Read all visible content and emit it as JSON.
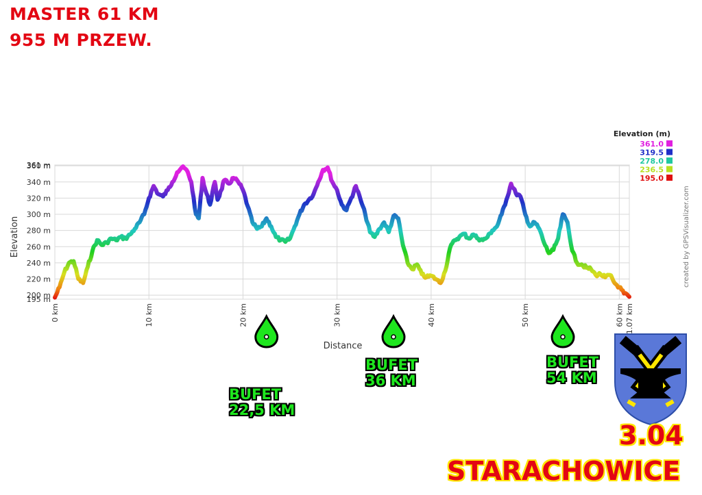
{
  "header": {
    "line1": "MASTER 61 KM",
    "line2": "955 M PRZEW."
  },
  "chart_data": {
    "type": "area",
    "xlabel": "Distance",
    "ylabel": "Elevation",
    "xlim": [
      0,
      61.07
    ],
    "ylim": [
      195,
      361
    ],
    "x_ticks": [
      "0 km",
      "10 km",
      "20 km",
      "30 km",
      "40 km",
      "50 km",
      "60 km",
      "61.07 km"
    ],
    "x_tick_values": [
      0,
      10,
      20,
      30,
      40,
      50,
      60,
      61.07
    ],
    "y_ticks": [
      "195 m",
      "200 m",
      "220 m",
      "240 m",
      "260 m",
      "280 m",
      "300 m",
      "320 m",
      "340 m",
      "360 m",
      "361 m"
    ],
    "y_tick_values": [
      195,
      200,
      220,
      240,
      260,
      280,
      300,
      320,
      340,
      360,
      361
    ],
    "grid": true,
    "legend": {
      "title": "Elevation (m)",
      "entries": [
        {
          "label": "361.0",
          "color": "#e020e0"
        },
        {
          "label": "319.5",
          "color": "#2030c8"
        },
        {
          "label": "278.0",
          "color": "#20c8a0"
        },
        {
          "label": "236.5",
          "color": "#b8e020"
        },
        {
          "label": "195.0",
          "color": "#e01010"
        }
      ],
      "placement": "top-right"
    },
    "x": [
      0,
      0.5,
      1,
      1.5,
      2,
      2.5,
      3,
      3.5,
      4,
      4.5,
      5,
      5.5,
      6,
      6.5,
      7,
      7.5,
      8,
      8.5,
      9,
      9.5,
      10,
      10.5,
      11,
      11.5,
      12,
      12.5,
      13,
      13.5,
      14,
      14.5,
      15,
      15.3,
      15.7,
      16,
      16.5,
      17,
      17.3,
      17.7,
      18,
      18.5,
      19,
      19.5,
      20,
      20.5,
      21,
      21.5,
      22,
      22.5,
      23,
      23.5,
      24,
      24.5,
      25,
      25.5,
      26,
      26.5,
      27,
      27.5,
      28,
      28.5,
      29,
      29.5,
      30,
      30.5,
      31,
      31.5,
      32,
      32.5,
      33,
      33.5,
      34,
      34.5,
      35,
      35.5,
      36,
      36.5,
      37,
      37.5,
      38,
      38.5,
      39,
      39.5,
      40,
      40.5,
      41,
      41.5,
      42,
      42.5,
      43,
      43.5,
      44,
      44.5,
      45,
      45.5,
      46,
      46.5,
      47,
      47.5,
      48,
      48.5,
      49,
      49.5,
      50,
      50.5,
      51,
      51.5,
      52,
      52.5,
      53,
      53.5,
      54,
      54.5,
      55,
      55.5,
      56,
      56.5,
      57,
      57.5,
      58,
      58.5,
      59,
      59.5,
      60,
      60.5,
      61.07
    ],
    "elevation": [
      197,
      210,
      228,
      240,
      242,
      220,
      215,
      235,
      255,
      268,
      262,
      265,
      270,
      268,
      272,
      270,
      275,
      282,
      290,
      300,
      320,
      335,
      325,
      322,
      330,
      340,
      352,
      358,
      355,
      340,
      300,
      295,
      345,
      330,
      312,
      340,
      318,
      330,
      342,
      338,
      345,
      340,
      330,
      310,
      290,
      282,
      285,
      295,
      285,
      272,
      268,
      266,
      270,
      285,
      300,
      312,
      318,
      325,
      340,
      355,
      358,
      340,
      330,
      312,
      305,
      320,
      335,
      318,
      300,
      278,
      272,
      282,
      290,
      278,
      298,
      295,
      262,
      240,
      232,
      238,
      226,
      222,
      224,
      220,
      215,
      230,
      258,
      268,
      272,
      276,
      270,
      275,
      270,
      268,
      272,
      280,
      285,
      300,
      318,
      338,
      326,
      322,
      300,
      285,
      290,
      282,
      265,
      252,
      256,
      270,
      300,
      290,
      255,
      240,
      238,
      234,
      232,
      225,
      226,
      222,
      225,
      215,
      210,
      202,
      198
    ]
  },
  "waypoints": [
    {
      "line1": "BUFET",
      "line2": "22,5 KM",
      "km": 22.5
    },
    {
      "line1": "BUFET",
      "line2": "36 KM",
      "km": 36
    },
    {
      "line1": "BUFET",
      "line2": "54 KM",
      "km": 54
    }
  ],
  "credit": "created by GPSVisualizer.com",
  "footer": {
    "date": "3.04",
    "city": "STARACHOWICE"
  },
  "colors": {
    "title_red": "#e30613",
    "bufet_green": "#1ee61e",
    "crest_blue": "#5a78d8",
    "crest_yellow": "#ffe600"
  }
}
